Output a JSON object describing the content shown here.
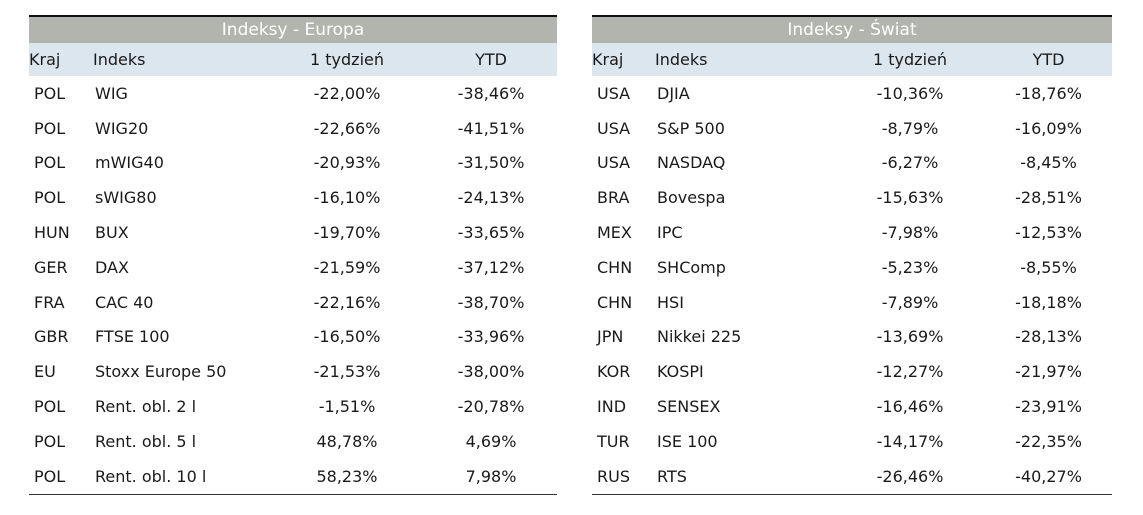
{
  "europe": {
    "title": "Indeksy - Europa",
    "headers": [
      "Kraj",
      "Indeks",
      "1 tydzień",
      "YTD"
    ],
    "rows": [
      [
        "POL",
        "WIG",
        "-22,00%",
        "-38,46%"
      ],
      [
        "POL",
        "WIG20",
        "-22,66%",
        "-41,51%"
      ],
      [
        "POL",
        "mWIG40",
        "-20,93%",
        "-31,50%"
      ],
      [
        "POL",
        "sWIG80",
        "-16,10%",
        "-24,13%"
      ],
      [
        "HUN",
        "BUX",
        "-19,70%",
        "-33,65%"
      ],
      [
        "GER",
        "DAX",
        "-21,59%",
        "-37,12%"
      ],
      [
        "FRA",
        "CAC 40",
        "-22,16%",
        "-38,70%"
      ],
      [
        "GBR",
        "FTSE 100",
        "-16,50%",
        "-33,96%"
      ],
      [
        "EU",
        "Stoxx Europe 50",
        "-21,53%",
        "-38,00%"
      ],
      [
        "POL",
        "Rent. obl. 2 l",
        "-1,51%",
        "-20,78%"
      ],
      [
        "POL",
        "Rent. obl. 5 l",
        "48,78%",
        "4,69%"
      ],
      [
        "POL",
        "Rent. obl. 10 l",
        "58,23%",
        "7,98%"
      ]
    ]
  },
  "world": {
    "title": "Indeksy - Świat",
    "headers": [
      "Kraj",
      "Indeks",
      "1 tydzień",
      "YTD"
    ],
    "rows": [
      [
        "USA",
        "DJIA",
        "-10,36%",
        "-18,76%"
      ],
      [
        "USA",
        "S&P 500",
        "-8,79%",
        "-16,09%"
      ],
      [
        "USA",
        "NASDAQ",
        "-6,27%",
        "-8,45%"
      ],
      [
        "BRA",
        "Bovespa",
        "-15,63%",
        "-28,51%"
      ],
      [
        "MEX",
        "IPC",
        "-7,98%",
        "-12,53%"
      ],
      [
        "CHN",
        "SHComp",
        "-5,23%",
        "-8,55%"
      ],
      [
        "CHN",
        "HSI",
        "-7,89%",
        "-18,18%"
      ],
      [
        "JPN",
        "Nikkei 225",
        "-13,69%",
        "-28,13%"
      ],
      [
        "KOR",
        "KOSPI",
        "-12,27%",
        "-21,97%"
      ],
      [
        "IND",
        "SENSEX",
        "-16,46%",
        "-23,91%"
      ],
      [
        "TUR",
        "ISE 100",
        "-14,17%",
        "-22,35%"
      ],
      [
        "RUS",
        "RTS",
        "-26,46%",
        "-40,27%"
      ]
    ]
  }
}
